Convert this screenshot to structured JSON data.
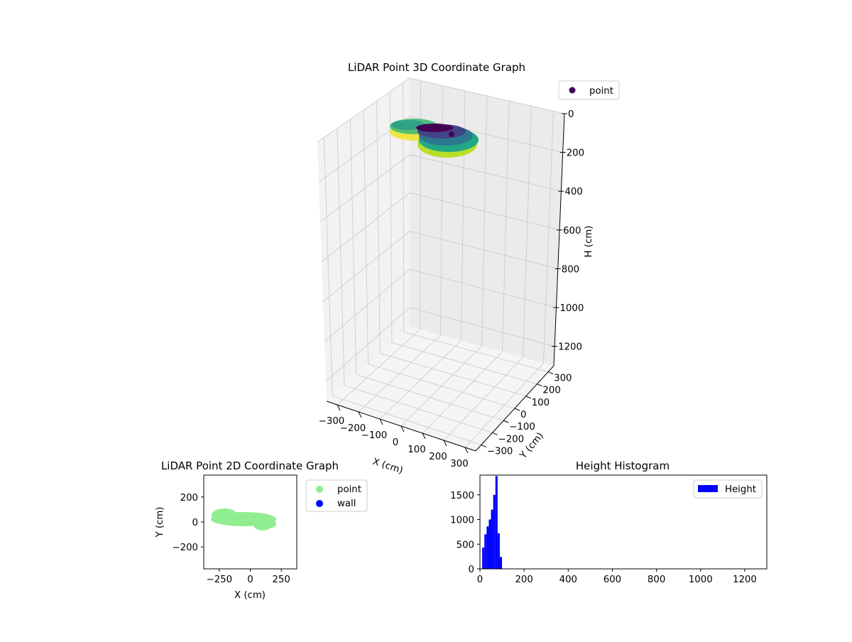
{
  "chart_data": [
    {
      "type": "scatter",
      "title": "LiDAR Point 3D Coordinate Graph",
      "xlabel": "X (cm)",
      "ylabel": "Y (cm)",
      "zlabel": "H (cm)",
      "xlim": [
        -350,
        350
      ],
      "ylim": [
        -350,
        350
      ],
      "zlim": [
        0,
        1300
      ],
      "z_inverted": true,
      "xticks": [
        -300,
        -200,
        -100,
        0,
        100,
        200,
        300
      ],
      "xtick_labels": [
        "−300",
        "−200",
        "−100",
        "0",
        "100",
        "200",
        "300"
      ],
      "yticks": [
        -300,
        -200,
        -100,
        0,
        100,
        200,
        300
      ],
      "ytick_labels": [
        "−300",
        "−200",
        "−100",
        "0",
        "100",
        "200",
        "300"
      ],
      "zticks": [
        0,
        200,
        400,
        600,
        800,
        1000,
        1200
      ],
      "ztick_labels": [
        "0",
        "200",
        "400",
        "600",
        "800",
        "1000",
        "1200"
      ],
      "grid": true,
      "legend": {
        "placement": "upper-right",
        "entries": [
          "point"
        ]
      },
      "series": [
        {
          "name": "point",
          "colormap": "viridis",
          "x": [
            -200,
            -150,
            -120,
            -80,
            -40,
            0,
            40,
            80,
            120,
            160,
            200,
            -180,
            -100,
            -20,
            60,
            140
          ],
          "y": [
            60,
            80,
            40,
            30,
            50,
            20,
            10,
            0,
            -20,
            -30,
            -50,
            90,
            70,
            60,
            30,
            -10
          ],
          "h": [
            60,
            50,
            70,
            40,
            80,
            60,
            90,
            50,
            70,
            40,
            60,
            30,
            45,
            55,
            65,
            75
          ]
        }
      ]
    },
    {
      "type": "scatter",
      "title": "LiDAR Point 2D Coordinate Graph",
      "xlabel": "X (cm)",
      "ylabel": "Y (cm)",
      "xlim": [
        -375,
        375
      ],
      "ylim": [
        -375,
        375
      ],
      "xticks": [
        -250,
        0,
        250
      ],
      "xtick_labels": [
        "−250",
        "0",
        "250"
      ],
      "yticks": [
        -200,
        0,
        200
      ],
      "ytick_labels": [
        "−200",
        "0",
        "200"
      ],
      "legend": {
        "placement": "outside-right",
        "entries": [
          "point",
          "wall"
        ]
      },
      "series": [
        {
          "name": "point",
          "color": "#90ee90",
          "x": [
            -280,
            -250,
            -220,
            -180,
            -150,
            -120,
            -90,
            -60,
            -30,
            0,
            30,
            60,
            90,
            120,
            150,
            180,
            200
          ],
          "y": [
            80,
            90,
            70,
            60,
            70,
            40,
            50,
            20,
            30,
            0,
            -20,
            -40,
            -50,
            -60,
            -40,
            -20,
            -10
          ]
        },
        {
          "name": "wall",
          "color": "#0000ff",
          "x": [],
          "y": []
        }
      ]
    },
    {
      "type": "bar",
      "title": "Height Histogram",
      "xlim": [
        0,
        1300
      ],
      "ylim": [
        0,
        1900
      ],
      "xticks": [
        0,
        200,
        400,
        600,
        800,
        1000,
        1200
      ],
      "xtick_labels": [
        "0",
        "200",
        "400",
        "600",
        "800",
        "1000",
        "1200"
      ],
      "yticks": [
        0,
        500,
        1000,
        1500
      ],
      "ytick_labels": [
        "0",
        "500",
        "1000",
        "1500"
      ],
      "legend": {
        "placement": "upper-right",
        "entries": [
          "Height"
        ]
      },
      "bar_color": "#0000ff",
      "bins": [
        {
          "x0": 0,
          "x1": 10,
          "count": 0
        },
        {
          "x0": 10,
          "x1": 20,
          "count": 430
        },
        {
          "x0": 20,
          "x1": 30,
          "count": 700
        },
        {
          "x0": 30,
          "x1": 40,
          "count": 860
        },
        {
          "x0": 40,
          "x1": 50,
          "count": 1000
        },
        {
          "x0": 50,
          "x1": 60,
          "count": 1200
        },
        {
          "x0": 60,
          "x1": 70,
          "count": 1500
        },
        {
          "x0": 70,
          "x1": 80,
          "count": 1880
        },
        {
          "x0": 80,
          "x1": 90,
          "count": 720
        },
        {
          "x0": 90,
          "x1": 100,
          "count": 240
        }
      ]
    }
  ]
}
